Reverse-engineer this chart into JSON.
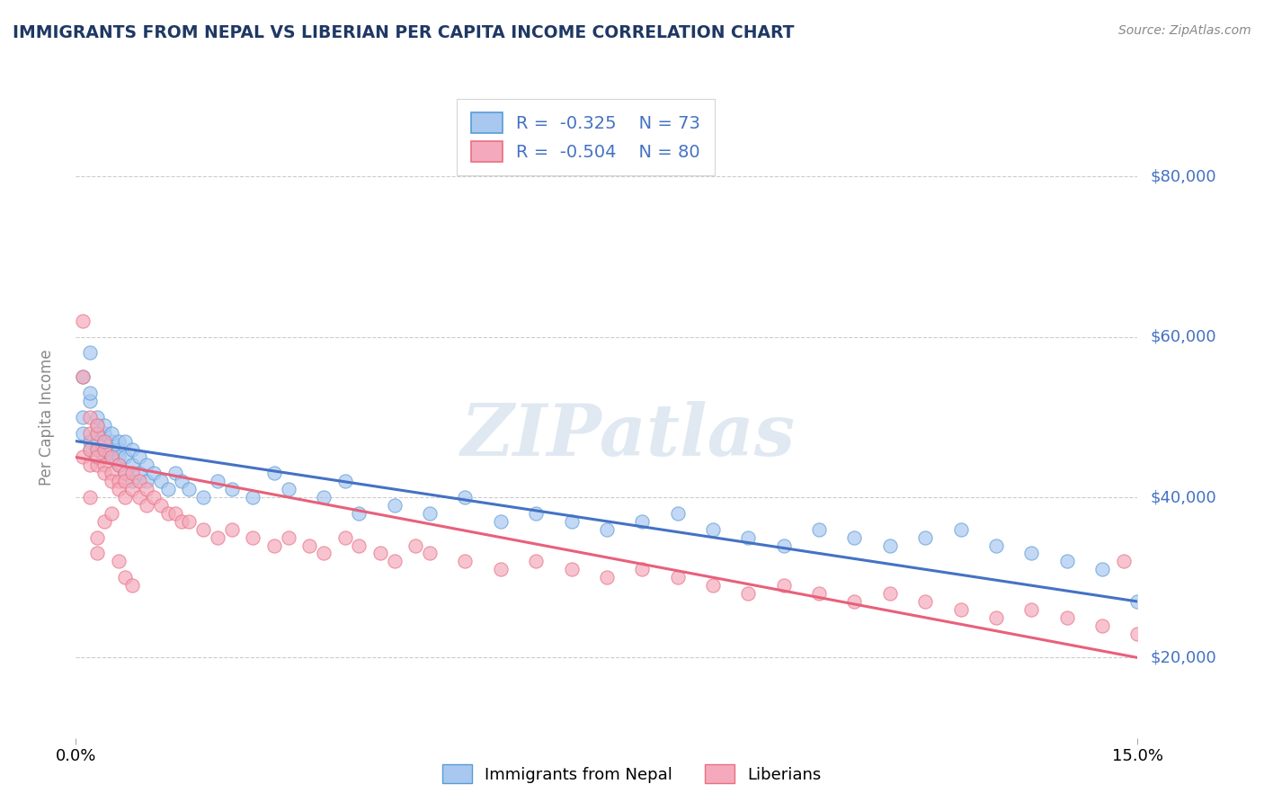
{
  "title": "IMMIGRANTS FROM NEPAL VS LIBERIAN PER CAPITA INCOME CORRELATION CHART",
  "source_text": "Source: ZipAtlas.com",
  "ylabel": "Per Capita Income",
  "watermark": "ZIPatlas",
  "xlim": [
    0.0,
    0.15
  ],
  "ylim": [
    10000,
    90000
  ],
  "ytick_vals": [
    20000,
    40000,
    60000,
    80000
  ],
  "ytick_labels": [
    "$20,000",
    "$40,000",
    "$60,000",
    "$80,000"
  ],
  "xtick_vals": [
    0.0,
    0.15
  ],
  "xtick_labels": [
    "0.0%",
    "15.0%"
  ],
  "legend_r1": "-0.325",
  "legend_n1": "73",
  "legend_r2": "-0.504",
  "legend_n2": "80",
  "series1_label": "Immigrants from Nepal",
  "series2_label": "Liberians",
  "color_blue_fill": "#A8C8F0",
  "color_blue_edge": "#5B9BD5",
  "color_pink_fill": "#F4AABC",
  "color_pink_edge": "#E87080",
  "color_blue_line": "#4472C4",
  "color_pink_line": "#E8607A",
  "color_text_blue": "#4472C4",
  "title_color": "#1F3864",
  "grid_color": "#CCCCCC",
  "nepal_x": [
    0.001,
    0.001,
    0.001,
    0.002,
    0.002,
    0.002,
    0.002,
    0.002,
    0.003,
    0.003,
    0.003,
    0.003,
    0.003,
    0.004,
    0.004,
    0.004,
    0.004,
    0.004,
    0.005,
    0.005,
    0.005,
    0.005,
    0.006,
    0.006,
    0.006,
    0.006,
    0.007,
    0.007,
    0.007,
    0.008,
    0.008,
    0.008,
    0.009,
    0.009,
    0.01,
    0.01,
    0.011,
    0.012,
    0.013,
    0.014,
    0.015,
    0.016,
    0.018,
    0.02,
    0.022,
    0.025,
    0.028,
    0.03,
    0.035,
    0.038,
    0.04,
    0.045,
    0.05,
    0.055,
    0.06,
    0.065,
    0.07,
    0.075,
    0.08,
    0.085,
    0.09,
    0.095,
    0.1,
    0.105,
    0.11,
    0.115,
    0.12,
    0.125,
    0.13,
    0.135,
    0.14,
    0.145,
    0.15
  ],
  "nepal_y": [
    50000,
    48000,
    55000,
    47000,
    52000,
    46000,
    53000,
    58000,
    46000,
    48000,
    49000,
    50000,
    47000,
    46000,
    47000,
    48000,
    49000,
    45000,
    46000,
    47000,
    48000,
    45000,
    46000,
    47000,
    45000,
    44000,
    47000,
    45000,
    43000,
    46000,
    44000,
    42000,
    45000,
    43000,
    44000,
    42000,
    43000,
    42000,
    41000,
    43000,
    42000,
    41000,
    40000,
    42000,
    41000,
    40000,
    43000,
    41000,
    40000,
    42000,
    38000,
    39000,
    38000,
    40000,
    37000,
    38000,
    37000,
    36000,
    37000,
    38000,
    36000,
    35000,
    34000,
    36000,
    35000,
    34000,
    35000,
    36000,
    34000,
    33000,
    32000,
    31000,
    27000
  ],
  "liberia_x": [
    0.001,
    0.001,
    0.001,
    0.002,
    0.002,
    0.002,
    0.002,
    0.003,
    0.003,
    0.003,
    0.003,
    0.003,
    0.004,
    0.004,
    0.004,
    0.004,
    0.005,
    0.005,
    0.005,
    0.006,
    0.006,
    0.006,
    0.007,
    0.007,
    0.007,
    0.008,
    0.008,
    0.009,
    0.009,
    0.01,
    0.01,
    0.011,
    0.012,
    0.013,
    0.014,
    0.015,
    0.016,
    0.018,
    0.02,
    0.022,
    0.025,
    0.028,
    0.03,
    0.033,
    0.035,
    0.038,
    0.04,
    0.043,
    0.045,
    0.048,
    0.05,
    0.055,
    0.06,
    0.065,
    0.07,
    0.075,
    0.08,
    0.085,
    0.09,
    0.095,
    0.1,
    0.105,
    0.11,
    0.115,
    0.12,
    0.125,
    0.13,
    0.135,
    0.14,
    0.145,
    0.148,
    0.15,
    0.003,
    0.004,
    0.006,
    0.007,
    0.005,
    0.002,
    0.003,
    0.008
  ],
  "liberia_y": [
    62000,
    55000,
    45000,
    48000,
    46000,
    50000,
    44000,
    48000,
    46000,
    44000,
    49000,
    45000,
    46000,
    44000,
    43000,
    47000,
    45000,
    43000,
    42000,
    44000,
    42000,
    41000,
    43000,
    42000,
    40000,
    43000,
    41000,
    42000,
    40000,
    41000,
    39000,
    40000,
    39000,
    38000,
    38000,
    37000,
    37000,
    36000,
    35000,
    36000,
    35000,
    34000,
    35000,
    34000,
    33000,
    35000,
    34000,
    33000,
    32000,
    34000,
    33000,
    32000,
    31000,
    32000,
    31000,
    30000,
    31000,
    30000,
    29000,
    28000,
    29000,
    28000,
    27000,
    28000,
    27000,
    26000,
    25000,
    26000,
    25000,
    24000,
    32000,
    23000,
    35000,
    37000,
    32000,
    30000,
    38000,
    40000,
    33000,
    29000
  ]
}
